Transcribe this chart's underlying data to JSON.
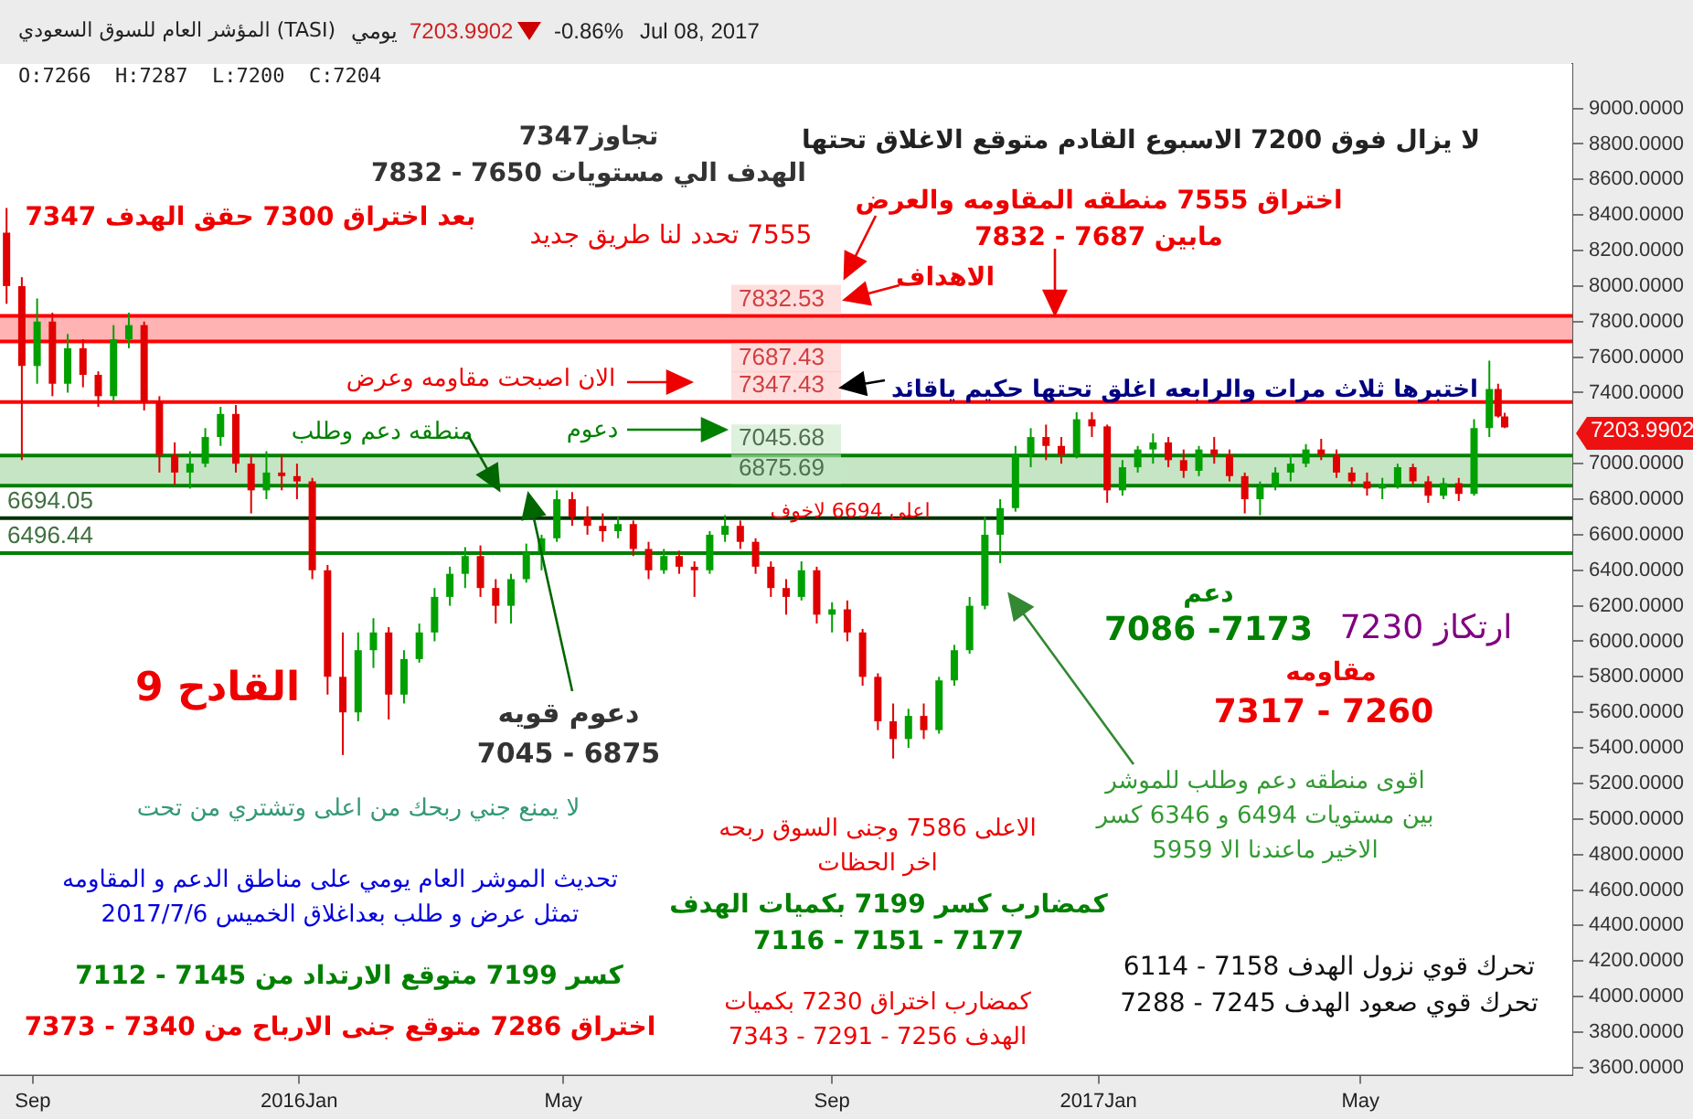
{
  "chart_data": {
    "type": "candlestick",
    "title": "المؤشر العام للسوق السعودي (TASI)",
    "x": [
      "2015-08-20",
      "2015-08-27",
      "2015-09-03",
      "2015-09-10",
      "2015-09-17",
      "2015-09-24",
      "2015-10-01",
      "2015-10-08",
      "2015-10-15",
      "2015-10-22",
      "2015-10-29",
      "2015-11-05",
      "2015-11-12",
      "2015-11-19",
      "2015-11-26",
      "2015-12-03",
      "2015-12-10",
      "2015-12-17",
      "2015-12-24",
      "2015-12-31",
      "2016-01-07",
      "2016-01-14",
      "2016-01-21",
      "2016-01-28",
      "2016-02-04",
      "2016-02-11",
      "2016-02-18",
      "2016-02-25",
      "2016-03-03",
      "2016-03-10",
      "2016-03-17",
      "2016-03-24",
      "2016-03-31",
      "2016-04-07",
      "2016-04-14",
      "2016-04-21",
      "2016-04-28",
      "2016-05-05",
      "2016-05-12",
      "2016-05-19",
      "2016-05-26",
      "2016-06-02",
      "2016-06-09",
      "2016-06-16",
      "2016-06-23",
      "2016-06-30",
      "2016-07-07",
      "2016-07-14",
      "2016-07-21",
      "2016-07-28",
      "2016-08-04",
      "2016-08-11",
      "2016-08-18",
      "2016-08-25",
      "2016-09-01",
      "2016-09-08",
      "2016-09-15",
      "2016-09-22",
      "2016-09-29",
      "2016-10-06",
      "2016-10-13",
      "2016-10-20",
      "2016-10-27",
      "2016-11-03",
      "2016-11-10",
      "2016-11-17",
      "2016-11-24",
      "2016-12-01",
      "2016-12-08",
      "2016-12-15",
      "2016-12-22",
      "2016-12-29",
      "2017-01-05",
      "2017-01-12",
      "2017-01-19",
      "2017-01-26",
      "2017-02-02",
      "2017-02-09",
      "2017-02-16",
      "2017-02-23",
      "2017-03-02",
      "2017-03-09",
      "2017-03-16",
      "2017-03-23",
      "2017-03-30",
      "2017-04-06",
      "2017-04-13",
      "2017-04-20",
      "2017-04-27",
      "2017-05-04",
      "2017-05-11",
      "2017-05-18",
      "2017-05-25",
      "2017-06-01",
      "2017-06-08",
      "2017-06-15",
      "2017-06-22",
      "2017-06-29",
      "2017-07-03",
      "2017-07-06"
    ],
    "ohlc": [
      [
        8300,
        8440,
        7900,
        8000
      ],
      [
        8000,
        8050,
        7020,
        7550
      ],
      [
        7550,
        7930,
        7450,
        7800
      ],
      [
        7800,
        7850,
        7380,
        7450
      ],
      [
        7450,
        7730,
        7400,
        7650
      ],
      [
        7650,
        7700,
        7430,
        7500
      ],
      [
        7500,
        7520,
        7320,
        7380
      ],
      [
        7380,
        7780,
        7350,
        7700
      ],
      [
        7700,
        7850,
        7650,
        7780
      ],
      [
        7780,
        7800,
        7300,
        7350
      ],
      [
        7350,
        7380,
        6950,
        7050
      ],
      [
        7050,
        7120,
        6880,
        6950
      ],
      [
        6950,
        7070,
        6860,
        7000
      ],
      [
        7000,
        7200,
        6980,
        7150
      ],
      [
        7150,
        7320,
        7100,
        7280
      ],
      [
        7280,
        7330,
        6950,
        7000
      ],
      [
        7000,
        7050,
        6720,
        6850
      ],
      [
        6850,
        7070,
        6800,
        6950
      ],
      [
        6950,
        7050,
        6850,
        6930
      ],
      [
        6930,
        7000,
        6800,
        6900
      ],
      [
        6900,
        6920,
        6350,
        6400
      ],
      [
        6400,
        6430,
        5700,
        5800
      ],
      [
        5800,
        6050,
        5360,
        5600
      ],
      [
        5600,
        6050,
        5550,
        5950
      ],
      [
        5950,
        6130,
        5850,
        6050
      ],
      [
        6050,
        6080,
        5560,
        5700
      ],
      [
        5700,
        5950,
        5650,
        5900
      ],
      [
        5900,
        6100,
        5880,
        6050
      ],
      [
        6050,
        6300,
        6000,
        6250
      ],
      [
        6250,
        6420,
        6200,
        6380
      ],
      [
        6380,
        6530,
        6300,
        6480
      ],
      [
        6480,
        6540,
        6250,
        6300
      ],
      [
        6300,
        6350,
        6100,
        6200
      ],
      [
        6200,
        6380,
        6100,
        6350
      ],
      [
        6350,
        6550,
        6330,
        6500
      ],
      [
        6500,
        6600,
        6400,
        6580
      ],
      [
        6580,
        6850,
        6560,
        6800
      ],
      [
        6800,
        6840,
        6650,
        6700
      ],
      [
        6700,
        6760,
        6600,
        6650
      ],
      [
        6650,
        6720,
        6560,
        6620
      ],
      [
        6620,
        6700,
        6580,
        6660
      ],
      [
        6660,
        6680,
        6480,
        6520
      ],
      [
        6520,
        6560,
        6350,
        6400
      ],
      [
        6400,
        6520,
        6380,
        6480
      ],
      [
        6480,
        6510,
        6380,
        6420
      ],
      [
        6420,
        6450,
        6250,
        6400
      ],
      [
        6400,
        6620,
        6380,
        6600
      ],
      [
        6600,
        6710,
        6560,
        6650
      ],
      [
        6650,
        6680,
        6520,
        6560
      ],
      [
        6560,
        6580,
        6380,
        6420
      ],
      [
        6420,
        6450,
        6250,
        6300
      ],
      [
        6300,
        6350,
        6150,
        6250
      ],
      [
        6250,
        6450,
        6230,
        6400
      ],
      [
        6400,
        6420,
        6100,
        6150
      ],
      [
        6150,
        6220,
        6050,
        6180
      ],
      [
        6180,
        6230,
        6000,
        6050
      ],
      [
        6050,
        6070,
        5750,
        5800
      ],
      [
        5800,
        5820,
        5500,
        5550
      ],
      [
        5550,
        5650,
        5340,
        5450
      ],
      [
        5450,
        5620,
        5400,
        5580
      ],
      [
        5580,
        5650,
        5450,
        5500
      ],
      [
        5500,
        5800,
        5480,
        5780
      ],
      [
        5780,
        5980,
        5750,
        5950
      ],
      [
        5950,
        6250,
        5930,
        6200
      ],
      [
        6200,
        6700,
        6180,
        6600
      ],
      [
        6600,
        6800,
        6440,
        6750
      ],
      [
        6750,
        7100,
        6730,
        7050
      ],
      [
        7050,
        7200,
        6980,
        7150
      ],
      [
        7150,
        7220,
        7020,
        7100
      ],
      [
        7100,
        7150,
        7000,
        7050
      ],
      [
        7050,
        7290,
        7030,
        7250
      ],
      [
        7250,
        7290,
        7150,
        7210
      ],
      [
        7210,
        7220,
        6780,
        6850
      ],
      [
        6850,
        7020,
        6820,
        6980
      ],
      [
        6980,
        7100,
        6950,
        7080
      ],
      [
        7080,
        7170,
        7000,
        7120
      ],
      [
        7120,
        7150,
        6980,
        7020
      ],
      [
        7020,
        7080,
        6920,
        6960
      ],
      [
        6960,
        7100,
        6930,
        7080
      ],
      [
        7080,
        7150,
        7000,
        7050
      ],
      [
        7050,
        7080,
        6900,
        6930
      ],
      [
        6930,
        6950,
        6720,
        6800
      ],
      [
        6800,
        6900,
        6710,
        6870
      ],
      [
        6870,
        6980,
        6850,
        6950
      ],
      [
        6950,
        7050,
        6900,
        7000
      ],
      [
        7000,
        7110,
        6980,
        7080
      ],
      [
        7080,
        7140,
        7020,
        7050
      ],
      [
        7050,
        7080,
        6920,
        6950
      ],
      [
        6950,
        6980,
        6870,
        6900
      ],
      [
        6900,
        6950,
        6820,
        6860
      ],
      [
        6860,
        6920,
        6800,
        6880
      ],
      [
        6880,
        7000,
        6860,
        6980
      ],
      [
        6980,
        7000,
        6880,
        6900
      ],
      [
        6900,
        6930,
        6780,
        6820
      ],
      [
        6820,
        6920,
        6800,
        6890
      ],
      [
        6890,
        6920,
        6790,
        6830
      ],
      [
        6830,
        7250,
        6820,
        7200
      ],
      [
        7200,
        7580,
        7150,
        7420
      ],
      [
        7420,
        7450,
        7260,
        7266
      ],
      [
        7266,
        7287,
        7200,
        7204
      ]
    ],
    "xlim": [
      "2015-08-17",
      "2017-08-06"
    ],
    "xticks": [
      {
        "value": "2015-09-01",
        "label": "Sep"
      },
      {
        "value": "2016-01-01",
        "label": "2016Jan"
      },
      {
        "value": "2016-05-01",
        "label": "May"
      },
      {
        "value": "2016-09-01",
        "label": "Sep"
      },
      {
        "value": "2017-01-01",
        "label": "2017Jan"
      },
      {
        "value": "2017-05-01",
        "label": "May"
      }
    ],
    "ylim": [
      3560,
      9250
    ],
    "yticks": [
      {
        "value": 3600,
        "label": "3600.0000"
      },
      {
        "value": 3800,
        "label": "3800.0000"
      },
      {
        "value": 4000,
        "label": "4000.0000"
      },
      {
        "value": 4200,
        "label": "4200.0000"
      },
      {
        "value": 4400,
        "label": "4400.0000"
      },
      {
        "value": 4600,
        "label": "4600.0000"
      },
      {
        "value": 4800,
        "label": "4800.0000"
      },
      {
        "value": 5000,
        "label": "5000.0000"
      },
      {
        "value": 5200,
        "label": "5200.0000"
      },
      {
        "value": 5400,
        "label": "5400.0000"
      },
      {
        "value": 5600,
        "label": "5600.0000"
      },
      {
        "value": 5800,
        "label": "5800.0000"
      },
      {
        "value": 6000,
        "label": "6000.0000"
      },
      {
        "value": 6200,
        "label": "6200.0000"
      },
      {
        "value": 6400,
        "label": "6400.0000"
      },
      {
        "value": 6600,
        "label": "6600.0000"
      },
      {
        "value": 6800,
        "label": "6800.0000"
      },
      {
        "value": 7000,
        "label": "7000.0000"
      },
      {
        "value": 7400,
        "label": "7400.0000"
      },
      {
        "value": 7600,
        "label": "7600.0000"
      },
      {
        "value": 7800,
        "label": "7800.0000"
      },
      {
        "value": 8000,
        "label": "8000.0000"
      },
      {
        "value": 8200,
        "label": "8200.0000"
      },
      {
        "value": 8400,
        "label": "8400.0000"
      },
      {
        "value": 8600,
        "label": "8600.0000"
      },
      {
        "value": 8800,
        "label": "8800.0000"
      },
      {
        "value": 9000,
        "label": "9000.0000"
      }
    ],
    "ref_lines": [
      {
        "axis": "y",
        "value": 7832.53,
        "label": "7832.53",
        "color": "#ff0000"
      },
      {
        "axis": "y",
        "value": 7687.43,
        "label": "7687.43",
        "color": "#ff0000"
      },
      {
        "axis": "y",
        "value": 7347.43,
        "label": "7347.43",
        "color": "#ff0000"
      },
      {
        "axis": "y",
        "value": 7045.68,
        "label": "7045.68",
        "color": "#008000"
      },
      {
        "axis": "y",
        "value": 6875.69,
        "label": "6875.69",
        "color": "#008000"
      },
      {
        "axis": "y",
        "value": 6694.05,
        "label": "6694.05",
        "color": "#003300"
      },
      {
        "axis": "y",
        "value": 6496.44,
        "label": "6496.44",
        "color": "#008000"
      }
    ],
    "bands": [
      {
        "axis": "y",
        "from": 7687.43,
        "to": 7832.53,
        "color": "#ff9a9a"
      },
      {
        "axis": "y",
        "from": 6875.69,
        "to": 7045.68,
        "color": "#b2dcb2"
      }
    ],
    "annotations": [
      "يومي",
      "7203.9902",
      "-0.86%",
      "Jul 08, 2017",
      "O:7266  H:7287  L:7200  C:7204",
      "تجاوز7347\nالهدف الي مستويات 7650 - 7832",
      "بعد اختراق 7300 حقق الهدف 7347",
      "7555 تحدد لنا طريق جديد",
      "لا يزال فوق 7200 الاسبوع القادم متوقع الاغلاق تحتها",
      "اختراق 7555 منطقه المقاومه والعرض\nمابين 7687 - 7832",
      "الاهداف",
      "الان اصبحت مقاومه وعرض",
      "اختبرها ثلاث مرات والرابعه اغلق تحتها حكيم ياقائد",
      "منطقه دعم وطلب",
      "دعوم",
      "اعلى 6694 لاخوف",
      "القادح 9",
      "دعوم قويه\n6875 - 7045",
      "لا يمنع جني ربحك من اعلى وتشتري من تحت",
      "تحديث الموشر العام يومي على مناطق الدعم و المقاومه\nتمثل عرض و طلب بعداغلاق الخميس 2017/7/6",
      "كسر 7199 متوقع الارتداد من 7145 - 7112",
      "اختراق 7286 متوقع جنى الارباح من 7340 - 7373",
      "الاعلى 7586 وجنى السوق ربحه\nاخر الحظات",
      "كمضارب كسر 7199 بكميات الهدف\n7177 - 7151 - 7116",
      "كمضارب اختراق 7230 بكميات\nالهدف 7256 - 7291 - 7343",
      "دعم",
      "7173- 7086",
      "ارتكاز 7230",
      "مقاومه",
      "7260 - 7317",
      "اقوى منطقه دعم وطلب للموشر\nبين مستويات 6494 و 6346 كسر\nالاخير ماعندنا الا 5959",
      "تحرك قوي نزول الهدف 7158 - 6114",
      "تحرك قوي صعود الهدف 7245 - 7288",
      "7203.9902"
    ]
  }
}
